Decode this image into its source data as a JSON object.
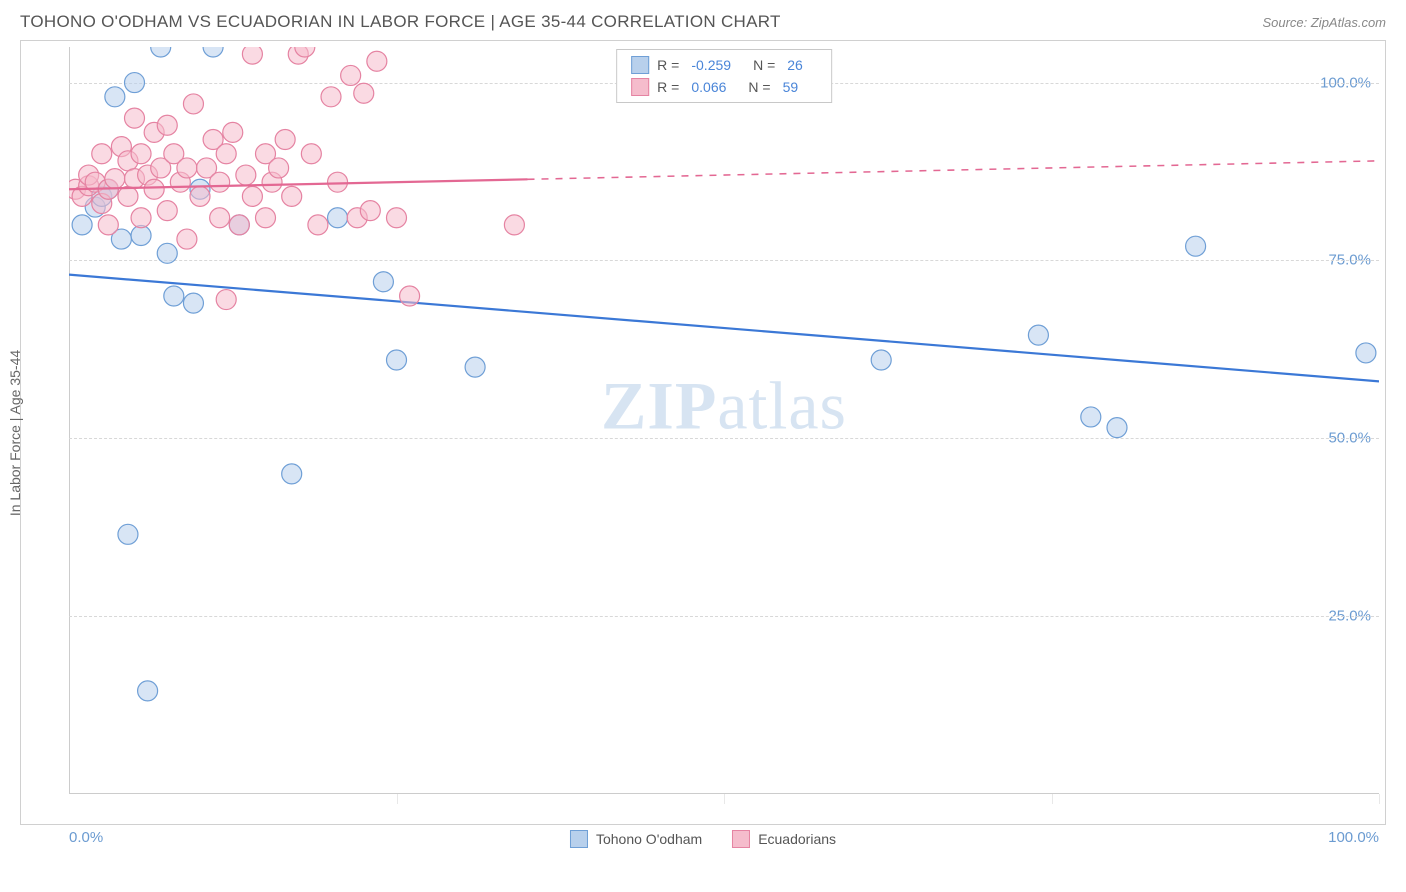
{
  "title": "TOHONO O'ODHAM VS ECUADORIAN IN LABOR FORCE | AGE 35-44 CORRELATION CHART",
  "source": "Source: ZipAtlas.com",
  "y_axis_label": "In Labor Force | Age 35-44",
  "watermark_heavy": "ZIP",
  "watermark_light": "atlas",
  "chart": {
    "type": "scatter",
    "xlim": [
      0,
      100
    ],
    "ylim": [
      0,
      105
    ],
    "y_ticks": [
      25.0,
      50.0,
      75.0,
      100.0
    ],
    "y_tick_labels": [
      "25.0%",
      "50.0%",
      "75.0%",
      "100.0%"
    ],
    "x_ticks_minor": [
      0,
      25,
      50,
      75,
      100
    ],
    "x_tick_labels": {
      "left": "0.0%",
      "right": "100.0%"
    },
    "grid_color": "#d8d8d8",
    "background_color": "#ffffff",
    "tick_label_color": "#6b9bd1",
    "point_radius": 10,
    "series": [
      {
        "key": "tohono",
        "label": "Tohono O'odham",
        "color_fill": "#b8d0ec",
        "color_stroke": "#6f9fd6",
        "r_value": "-0.259",
        "n_value": "26",
        "trend": {
          "x1": 0,
          "y1": 73,
          "x2": 100,
          "y2": 58,
          "solid_end_x": 100,
          "stroke": "#3b78d6",
          "width": 2.2
        },
        "points": [
          [
            1,
            80
          ],
          [
            2,
            82.5
          ],
          [
            2.5,
            84
          ],
          [
            3,
            85
          ],
          [
            3.5,
            98
          ],
          [
            4,
            78
          ],
          [
            4.5,
            36.5
          ],
          [
            5,
            100
          ],
          [
            5.5,
            78.5
          ],
          [
            6,
            14.5
          ],
          [
            7,
            105
          ],
          [
            7.5,
            76
          ],
          [
            8,
            70
          ],
          [
            9.5,
            69
          ],
          [
            10,
            85
          ],
          [
            11,
            105
          ],
          [
            13,
            80
          ],
          [
            17,
            45
          ],
          [
            20.5,
            81
          ],
          [
            24,
            72
          ],
          [
            25,
            61
          ],
          [
            31,
            60
          ],
          [
            62,
            61
          ],
          [
            74,
            64.5
          ],
          [
            78,
            53
          ],
          [
            80,
            51.5
          ],
          [
            86,
            77
          ],
          [
            99,
            62
          ]
        ]
      },
      {
        "key": "ecuadorians",
        "label": "Ecuadorians",
        "color_fill": "#f5bccc",
        "color_stroke": "#e583a2",
        "r_value": "0.066",
        "n_value": "59",
        "trend": {
          "x1": 0,
          "y1": 85,
          "x2": 100,
          "y2": 89,
          "solid_end_x": 35,
          "stroke": "#e36893",
          "width": 2.2
        },
        "points": [
          [
            0.5,
            85
          ],
          [
            1,
            84
          ],
          [
            1.5,
            85.5
          ],
          [
            1.5,
            87
          ],
          [
            2,
            86
          ],
          [
            2.5,
            83
          ],
          [
            2.5,
            90
          ],
          [
            3,
            85
          ],
          [
            3,
            80
          ],
          [
            3.5,
            86.5
          ],
          [
            4,
            91
          ],
          [
            4.5,
            89
          ],
          [
            4.5,
            84
          ],
          [
            5,
            95
          ],
          [
            5,
            86.5
          ],
          [
            5.5,
            81
          ],
          [
            5.5,
            90
          ],
          [
            6,
            87
          ],
          [
            6.5,
            93
          ],
          [
            6.5,
            85
          ],
          [
            7,
            88
          ],
          [
            7.5,
            82
          ],
          [
            7.5,
            94
          ],
          [
            8,
            90
          ],
          [
            8.5,
            86
          ],
          [
            9,
            88
          ],
          [
            9,
            78
          ],
          [
            9.5,
            97
          ],
          [
            10,
            84
          ],
          [
            10.5,
            88
          ],
          [
            11,
            92
          ],
          [
            11.5,
            81
          ],
          [
            11.5,
            86
          ],
          [
            12,
            90
          ],
          [
            12,
            69.5
          ],
          [
            12.5,
            93
          ],
          [
            13,
            80
          ],
          [
            13.5,
            87
          ],
          [
            14,
            84
          ],
          [
            14,
            104
          ],
          [
            15,
            81
          ],
          [
            15,
            90
          ],
          [
            15.5,
            86
          ],
          [
            16,
            88
          ],
          [
            16.5,
            92
          ],
          [
            17,
            84
          ],
          [
            17.5,
            104
          ],
          [
            18,
            105
          ],
          [
            18.5,
            90
          ],
          [
            19,
            80
          ],
          [
            20,
            98
          ],
          [
            20.5,
            86
          ],
          [
            21.5,
            101
          ],
          [
            22,
            81
          ],
          [
            22.5,
            98.5
          ],
          [
            23,
            82
          ],
          [
            23.5,
            103
          ],
          [
            25,
            81
          ],
          [
            26,
            70
          ],
          [
            34,
            80
          ]
        ]
      }
    ]
  },
  "legend_top": {
    "r_label": "R =",
    "n_label": "N ="
  }
}
